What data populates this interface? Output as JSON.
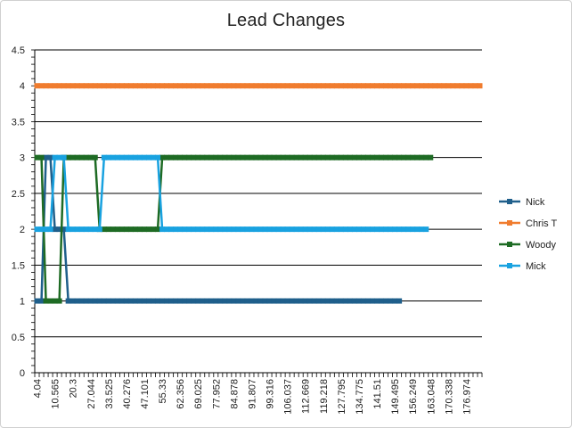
{
  "chart_data": {
    "type": "line",
    "title": "Lead Changes",
    "xlabel": "",
    "ylabel": "",
    "ylim": [
      0,
      4.5
    ],
    "yticks": [
      "0",
      "0.5",
      "1",
      "1.5",
      "2",
      "2.5",
      "3",
      "3.5",
      "4",
      "4.5"
    ],
    "grid": "horizontal",
    "legend": "right",
    "x_tick_labels": [
      "4.04",
      "10.565",
      "20.3",
      "27.044",
      "33.525",
      "40.276",
      "47.101",
      "55.33",
      "62.356",
      "69.025",
      "77.952",
      "84.878",
      "91.807",
      "99.316",
      "106.037",
      "112.669",
      "119.218",
      "127.795",
      "134.775",
      "141.51",
      "149.495",
      "156.249",
      "163.048",
      "170.338",
      "176.974"
    ],
    "categories_total": 100,
    "series": [
      {
        "name": "Nick",
        "color": "#1f5f8b",
        "values": [
          1,
          1,
          3,
          3,
          2,
          2,
          2,
          1,
          1,
          1,
          1,
          1,
          1,
          1,
          1,
          1,
          1,
          1,
          1,
          1,
          1,
          1,
          1,
          1,
          1,
          1,
          1,
          1,
          1,
          1,
          1,
          1,
          1,
          1,
          1,
          1,
          1,
          1,
          1,
          1,
          1,
          1,
          1,
          1,
          1,
          1,
          1,
          1,
          1,
          1,
          1,
          1,
          1,
          1,
          1,
          1,
          1,
          1,
          1,
          1,
          1,
          1,
          1,
          1,
          1,
          1,
          1,
          1,
          1,
          1,
          1,
          1,
          1,
          1,
          1,
          1,
          1,
          1,
          1,
          1,
          1,
          1
        ]
      },
      {
        "name": "Chris T",
        "color": "#f07c2e",
        "values": [
          4,
          4,
          4,
          4,
          4,
          4,
          4,
          4,
          4,
          4,
          4,
          4,
          4,
          4,
          4,
          4,
          4,
          4,
          4,
          4,
          4,
          4,
          4,
          4,
          4,
          4,
          4,
          4,
          4,
          4,
          4,
          4,
          4,
          4,
          4,
          4,
          4,
          4,
          4,
          4,
          4,
          4,
          4,
          4,
          4,
          4,
          4,
          4,
          4,
          4,
          4,
          4,
          4,
          4,
          4,
          4,
          4,
          4,
          4,
          4,
          4,
          4,
          4,
          4,
          4,
          4,
          4,
          4,
          4,
          4,
          4,
          4,
          4,
          4,
          4,
          4,
          4,
          4,
          4,
          4,
          4,
          4,
          4,
          4,
          4,
          4,
          4,
          4,
          4,
          4,
          4,
          4,
          4,
          4,
          4,
          4,
          4,
          4,
          4,
          4
        ]
      },
      {
        "name": "Woody",
        "color": "#1e6b24",
        "values": [
          3,
          3,
          1,
          1,
          1,
          1,
          3,
          3,
          3,
          3,
          3,
          3,
          3,
          3,
          2,
          2,
          2,
          2,
          2,
          2,
          2,
          2,
          2,
          2,
          2,
          2,
          2,
          2,
          3,
          3,
          3,
          3,
          3,
          3,
          3,
          3,
          3,
          3,
          3,
          3,
          3,
          3,
          3,
          3,
          3,
          3,
          3,
          3,
          3,
          3,
          3,
          3,
          3,
          3,
          3,
          3,
          3,
          3,
          3,
          3,
          3,
          3,
          3,
          3,
          3,
          3,
          3,
          3,
          3,
          3,
          3,
          3,
          3,
          3,
          3,
          3,
          3,
          3,
          3,
          3,
          3,
          3,
          3,
          3,
          3,
          3,
          3,
          3,
          3
        ]
      },
      {
        "name": "Mick",
        "color": "#19a2e0",
        "values": [
          2,
          2,
          2,
          2,
          3,
          3,
          3,
          2,
          2,
          2,
          2,
          2,
          2,
          2,
          2,
          3,
          3,
          3,
          3,
          3,
          3,
          3,
          3,
          3,
          3,
          3,
          3,
          3,
          2,
          2,
          2,
          2,
          2,
          2,
          2,
          2,
          2,
          2,
          2,
          2,
          2,
          2,
          2,
          2,
          2,
          2,
          2,
          2,
          2,
          2,
          2,
          2,
          2,
          2,
          2,
          2,
          2,
          2,
          2,
          2,
          2,
          2,
          2,
          2,
          2,
          2,
          2,
          2,
          2,
          2,
          2,
          2,
          2,
          2,
          2,
          2,
          2,
          2,
          2,
          2,
          2,
          2,
          2,
          2,
          2,
          2,
          2,
          2
        ]
      }
    ]
  }
}
